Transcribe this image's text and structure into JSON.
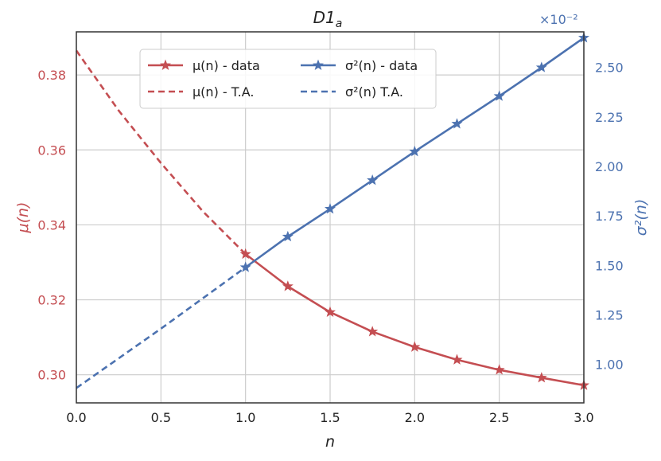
{
  "chart_data": {
    "type": "line",
    "title": "D1",
    "title_subscript": "a",
    "xlabel": "n",
    "ylabel_left": "μ(n)",
    "ylabel_right": "σ²(n)",
    "right_axis_multiplier": "×10⁻²",
    "xlim": [
      0.0,
      3.0
    ],
    "ylim_left": [
      0.2925,
      0.3915
    ],
    "ylim_right": [
      0.805,
      2.68
    ],
    "xticks": [
      "0.0",
      "0.5",
      "1.0",
      "1.5",
      "2.0",
      "2.5",
      "3.0"
    ],
    "yticks_left": [
      "0.30",
      "0.32",
      "0.34",
      "0.36",
      "0.38"
    ],
    "yticks_right": [
      "1.00",
      "1.25",
      "1.50",
      "1.75",
      "2.00",
      "2.25",
      "2.50"
    ],
    "grid": true,
    "legend_position": "top-left",
    "colors": {
      "mu": "#c44e52",
      "sigma": "#4c72b0"
    },
    "series": [
      {
        "name": "μ(n) - data",
        "axis": "left",
        "style": "solid",
        "marker": "star",
        "x": [
          1.0,
          1.25,
          1.5,
          1.75,
          2.0,
          2.25,
          2.5,
          2.75,
          3.0
        ],
        "y": [
          0.3322,
          0.3236,
          0.3167,
          0.3115,
          0.3074,
          0.304,
          0.3013,
          0.2992,
          0.2972
        ]
      },
      {
        "name": "μ(n) - T.A.",
        "axis": "left",
        "style": "dashed",
        "x": [
          0.0,
          0.25,
          0.5,
          0.75,
          1.0
        ],
        "y": [
          0.3865,
          0.3705,
          0.3565,
          0.3435,
          0.3322
        ]
      },
      {
        "name": "σ²(n) - data",
        "axis": "right",
        "style": "solid",
        "marker": "star",
        "x": [
          1.0,
          1.25,
          1.5,
          1.75,
          2.0,
          2.25,
          2.5,
          2.75,
          3.0
        ],
        "y": [
          1.49,
          1.645,
          1.785,
          1.93,
          2.075,
          2.215,
          2.355,
          2.5,
          2.65
        ]
      },
      {
        "name": "σ²(n) T.A.",
        "axis": "right",
        "style": "dashed",
        "x": [
          0.0,
          0.5,
          1.0
        ],
        "y": [
          0.88,
          1.18,
          1.49
        ]
      }
    ]
  }
}
